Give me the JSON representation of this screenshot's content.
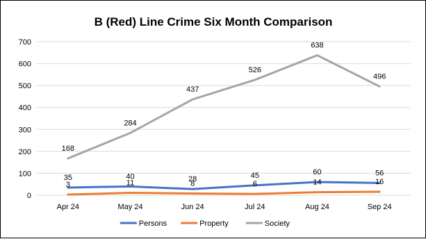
{
  "chart_data": {
    "type": "line",
    "title": "B (Red) Line Crime Six Month Comparison",
    "xlabel": "",
    "ylabel": "",
    "categories": [
      "Apr 24",
      "May 24",
      "Jun 24",
      "Jul 24",
      "Aug 24",
      "Sep 24"
    ],
    "ylim": [
      0,
      700
    ],
    "yticks": [
      0,
      100,
      200,
      300,
      400,
      500,
      600,
      700
    ],
    "grid": true,
    "legend_position": "bottom",
    "series": [
      {
        "name": "Persons",
        "color": "#4472C4",
        "values": [
          35,
          40,
          28,
          45,
          60,
          56
        ]
      },
      {
        "name": "Property",
        "color": "#ED7D31",
        "values": [
          3,
          11,
          8,
          6,
          14,
          16
        ]
      },
      {
        "name": "Society",
        "color": "#A5A5A5",
        "values": [
          168,
          284,
          437,
          526,
          638,
          496
        ]
      }
    ]
  }
}
